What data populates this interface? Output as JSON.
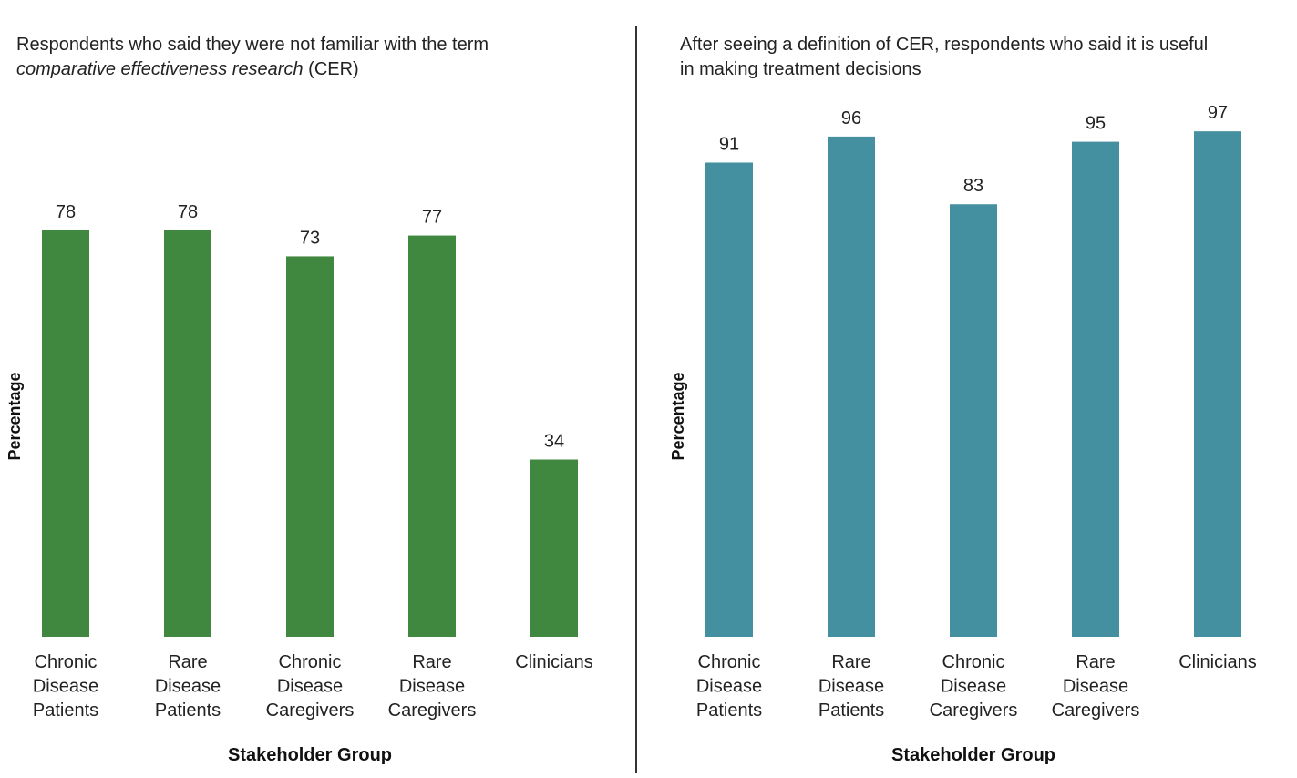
{
  "chart_data": [
    {
      "type": "bar",
      "title_parts": [
        "Respondents who said they were not familiar with the term",
        "comparative effectiveness research",
        "(CER)"
      ],
      "title": "Respondents who said they were not familiar with the term comparative effectiveness research (CER)",
      "xlabel": "Stakeholder Group",
      "ylabel": "Percentage",
      "categories": [
        [
          "Chronic",
          "Disease",
          "Patients"
        ],
        [
          "Rare",
          "Disease",
          "Patients"
        ],
        [
          "Chronic",
          "Disease",
          "Caregivers"
        ],
        [
          "Rare",
          "Disease",
          "Caregivers"
        ],
        [
          "Clinicians"
        ]
      ],
      "values": [
        78,
        78,
        73,
        77,
        34
      ],
      "color": "#40873f",
      "ylim": [
        0,
        100
      ],
      "grid": false,
      "data_labels": true
    },
    {
      "type": "bar",
      "title_parts": [
        "After seeing a definition of CER, respondents who said it is useful",
        "in making treatment decisions"
      ],
      "title": "After seeing a definition of CER, respondents who said it is useful in making treatment decisions",
      "xlabel": "Stakeholder Group",
      "ylabel": "Percentage",
      "categories": [
        [
          "Chronic",
          "Disease",
          "Patients"
        ],
        [
          "Rare",
          "Disease",
          "Patients"
        ],
        [
          "Chronic",
          "Disease",
          "Caregivers"
        ],
        [
          "Rare",
          "Disease",
          "Caregivers"
        ],
        [
          "Clinicians"
        ]
      ],
      "values": [
        91,
        96,
        83,
        95,
        97
      ],
      "color": "#4490a0",
      "ylim": [
        0,
        100
      ],
      "grid": false,
      "data_labels": true
    }
  ]
}
